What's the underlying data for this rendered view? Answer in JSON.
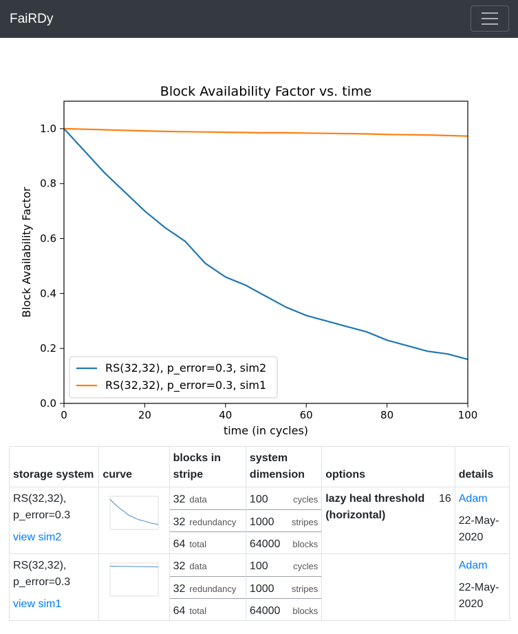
{
  "navbar": {
    "brand": "FaiRDy"
  },
  "chart_data": {
    "type": "line",
    "title": "Block Availability Factor vs. time",
    "xlabel": "time (in cycles)",
    "ylabel": "Block Availability Factor",
    "xlim": [
      0,
      100
    ],
    "ylim": [
      0,
      1.1
    ],
    "xticks": [
      0,
      20,
      40,
      60,
      80,
      100
    ],
    "yticks": [
      0.0,
      0.2,
      0.4,
      0.6,
      0.8,
      1.0
    ],
    "xtick_labels": [
      "0",
      "20",
      "40",
      "60",
      "80",
      "100"
    ],
    "ytick_labels": [
      "0.0",
      "0.2",
      "0.4",
      "0.6",
      "0.8",
      "1.0"
    ],
    "grid": false,
    "legend": "lower-left",
    "x": [
      0,
      5,
      10,
      15,
      20,
      25,
      30,
      35,
      40,
      45,
      50,
      55,
      60,
      65,
      70,
      75,
      80,
      85,
      90,
      95,
      100
    ],
    "series": [
      {
        "name": "RS(32,32), p_error=0.3, sim2",
        "color": "#1f77b4",
        "values": [
          1.0,
          0.92,
          0.84,
          0.77,
          0.7,
          0.64,
          0.59,
          0.51,
          0.46,
          0.43,
          0.39,
          0.35,
          0.32,
          0.3,
          0.28,
          0.26,
          0.23,
          0.21,
          0.19,
          0.18,
          0.16
        ]
      },
      {
        "name": "RS(32,32), p_error=0.3, sim1",
        "color": "#ff7f0e",
        "values": [
          1.0,
          0.998,
          0.996,
          0.994,
          0.992,
          0.99,
          0.989,
          0.988,
          0.987,
          0.986,
          0.985,
          0.985,
          0.984,
          0.983,
          0.982,
          0.981,
          0.979,
          0.978,
          0.977,
          0.975,
          0.973
        ]
      }
    ]
  },
  "table": {
    "headers": [
      "storage system",
      "curve",
      "blocks in stripe",
      "system dimension",
      "options",
      "details"
    ],
    "rows": [
      {
        "system": "RS(32,32), p_error=0.3",
        "link": "view sim2",
        "blocks": [
          {
            "value": "32",
            "unit": "data"
          },
          {
            "value": "32",
            "unit": "redundancy"
          },
          {
            "value": "64",
            "unit": "total"
          }
        ],
        "dims": [
          {
            "value": "100",
            "unit": "cycles"
          },
          {
            "value": "1000",
            "unit": "stripes"
          },
          {
            "value": "64000",
            "unit": "blocks"
          }
        ],
        "option_label": "lazy heal threshold (horizontal)",
        "option_value": "16",
        "author": "Adam",
        "date": "22-May-2020"
      },
      {
        "system": "RS(32,32), p_error=0.3",
        "link": "view sim1",
        "blocks": [
          {
            "value": "32",
            "unit": "data"
          },
          {
            "value": "32",
            "unit": "redundancy"
          },
          {
            "value": "64",
            "unit": "total"
          }
        ],
        "dims": [
          {
            "value": "100",
            "unit": "cycles"
          },
          {
            "value": "1000",
            "unit": "stripes"
          },
          {
            "value": "64000",
            "unit": "blocks"
          }
        ],
        "option_label": "",
        "option_value": "",
        "author": "Adam",
        "date": "22-May-2020"
      }
    ]
  }
}
